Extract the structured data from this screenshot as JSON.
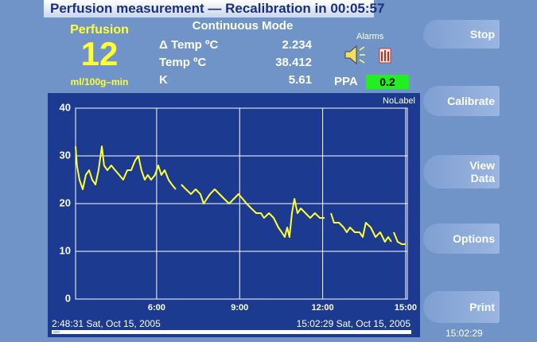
{
  "header": {
    "title": "Perfusion measurement — Recalibration in 00:05:57"
  },
  "perfusion": {
    "label": "Perfusion",
    "value": 12,
    "unit": "ml/100g–min"
  },
  "mode": {
    "title": "Continuous Mode",
    "rows": [
      {
        "label": "Δ Temp ºC",
        "value": 2.234
      },
      {
        "label": "Temp ºC",
        "value": 38.412
      },
      {
        "label": "K",
        "value": 5.61
      }
    ]
  },
  "alarms": {
    "label": "Alarms"
  },
  "ppa": {
    "label": "PPA",
    "value": 0.2
  },
  "buttons": [
    "Stop",
    "Calibrate",
    "View Data",
    "Options",
    "Print"
  ],
  "clock": "15:02:29",
  "chart_data": {
    "type": "line",
    "label": "NoLabel",
    "color": "#ffff33",
    "start_label": "2:48:31 Sat, Oct 15, 2005",
    "end_label": "15:02:29 Sat, Oct 15, 2005",
    "x": [
      3.07,
      3.12,
      3.21,
      3.33,
      3.44,
      3.56,
      3.67,
      3.79,
      3.9,
      4.02,
      4.1,
      4.22,
      4.36,
      4.5,
      4.65,
      4.79,
      4.94,
      5.08,
      5.22,
      5.34,
      5.45,
      5.57,
      5.68,
      5.8,
      5.94,
      6.06,
      6.17,
      6.29,
      6.43,
      6.55,
      6.69,
      6.8,
      6.89,
      7.06,
      7.24,
      7.41,
      7.58,
      7.7,
      7.81,
      7.93,
      8.1,
      8.27,
      8.44,
      8.62,
      8.79,
      8.96,
      9.11,
      9.25,
      9.42,
      9.6,
      9.77,
      9.88,
      10.06,
      10.23,
      10.4,
      10.52,
      10.63,
      10.72,
      10.8,
      10.89,
      10.98,
      11.09,
      11.21,
      11.38,
      11.55,
      11.72,
      11.9,
      12.07,
      12.15,
      12.3,
      12.41,
      12.59,
      12.76,
      12.87,
      12.99,
      13.16,
      13.33,
      13.45,
      13.56,
      13.74,
      13.91,
      14.08,
      14.25,
      14.37,
      14.48,
      14.52,
      14.57,
      14.71,
      14.86,
      15.0
    ],
    "values": [
      32,
      28,
      25,
      23,
      26,
      27,
      25,
      24,
      27,
      32,
      28,
      27,
      28,
      27,
      26,
      25,
      27,
      27,
      29,
      30,
      27,
      25,
      26,
      25,
      26,
      28,
      26,
      27,
      25,
      24,
      23,
      null,
      24,
      23,
      22,
      23,
      22,
      20,
      21,
      22,
      23,
      22,
      21,
      20,
      21,
      22,
      21,
      20,
      19,
      18,
      18,
      17,
      18,
      17,
      15,
      14,
      13,
      15,
      13,
      18,
      21,
      18,
      19,
      18,
      17,
      18,
      17,
      17,
      null,
      18,
      16,
      16,
      15,
      14,
      15,
      14,
      14,
      13,
      16,
      15,
      13,
      14,
      12,
      13,
      12,
      null,
      14,
      12,
      11.5,
      11.5
    ],
    "xlim": [
      3.07,
      15.06
    ],
    "ylim": [
      0,
      40
    ],
    "xticks": [
      {
        "value": 6,
        "label": "6:00"
      },
      {
        "value": 9,
        "label": "9:00"
      },
      {
        "value": 12,
        "label": "12:00"
      },
      {
        "value": 15,
        "label": "15:00"
      }
    ],
    "yticks": [
      0,
      10,
      20,
      30,
      40
    ],
    "grid": true
  }
}
